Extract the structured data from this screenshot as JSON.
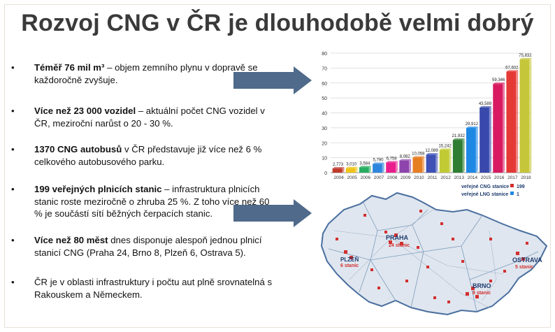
{
  "slide": {
    "title": "Rozvoj CNG v ČR je dlouhodobě velmi dobrý",
    "bullet_symbol": "•",
    "bullets": [
      {
        "bold": "Téměř 76 mil m³",
        "text": " – objem zemního plynu v dopravě se každoročně zvyšuje."
      },
      {
        "bold": "Více než 23 000 vozidel",
        "text": " – aktuální počet CNG vozidel v ČR, meziroční narůst o 20 - 30 %."
      },
      {
        "bold": "1370 CNG autobusů",
        "text": " v ČR představuje již více než 6 % celkového autobusového parku."
      },
      {
        "bold": "199 veřejných plnicích stanic",
        "text": " – infrastruktura plnicích stanic roste meziročně o zhruba 25 %. Z toho více než 60 % je součástí sítí běžných čerpacích stanic."
      },
      {
        "bold": "Více než 80 měst",
        "text": " dnes disponuje alespoň jednou plnicí stanicí CNG (Praha 24, Brno 8, Plzeň 6, Ostrava 5)."
      },
      {
        "bold": "",
        "text": "ČR je v oblasti infrastruktury i počtu aut plně srovnatelná s Rakouskem a Německem."
      }
    ]
  },
  "chart_data": {
    "type": "bar",
    "categories": [
      "2004",
      "2005",
      "2006",
      "2007",
      "2008",
      "2009",
      "2010",
      "2011",
      "2012",
      "2013",
      "2014",
      "2015",
      "2016",
      "2017",
      "2018"
    ],
    "values": [
      2.773,
      3.01,
      3.584,
      5.79,
      6.758,
      8.082,
      10.058,
      12.089,
      15.242,
      21.932,
      29.912,
      43.589,
      59.346,
      67.602,
      75.832
    ],
    "value_labels": [
      "2,773",
      "3,010",
      "3,584",
      "5,790",
      "6,758",
      "8,082",
      "10,058",
      "12,089",
      "15,242",
      "21,932",
      "29,912",
      "43,589",
      "59,346",
      "67,602",
      "75,832"
    ],
    "colors": [
      "#c0392b",
      "#f0c419",
      "#27ae60",
      "#2e86de",
      "#e91e8c",
      "#8e44ad",
      "#e67e22",
      "#3f51b5",
      "#c0ca33",
      "#2e7d32",
      "#1e88e5",
      "#3949ab",
      "#d81b60",
      "#e53935",
      "#c6c63a"
    ],
    "ylim": [
      0,
      80
    ],
    "yticks": [
      0,
      10,
      20,
      30,
      40,
      50,
      60,
      70,
      80
    ],
    "grid": true
  },
  "map": {
    "legend": [
      {
        "label": "veřejné CNG stanice",
        "value": "199"
      },
      {
        "label": "veřejné LNG stanice",
        "value": "1"
      }
    ],
    "cities": [
      {
        "name": "PRAHA",
        "label": "24 stanic"
      },
      {
        "name": "OSTRAVA",
        "label": "5 stanic"
      },
      {
        "name": "BRNO",
        "label": "8 stanic"
      },
      {
        "name": "PLZEŇ",
        "label": "6 stanic"
      }
    ]
  },
  "colors": {
    "title": "#3a3a3a",
    "arrow": "#4f6a8a",
    "map_red": "#d32f2f",
    "map_fill": "#dfe6ef"
  }
}
